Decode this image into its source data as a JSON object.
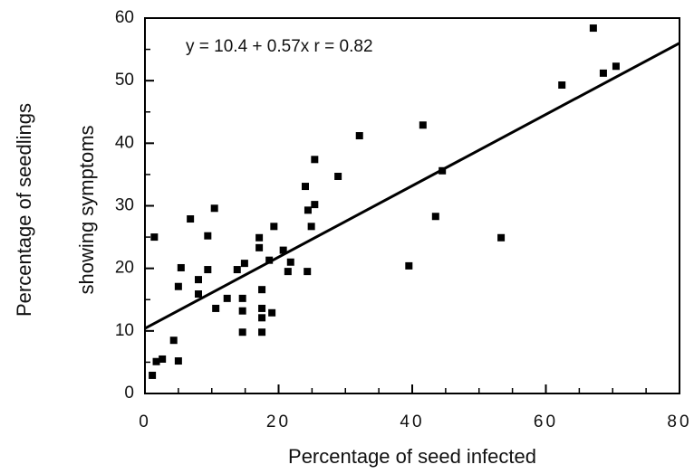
{
  "chart_data": {
    "type": "scatter",
    "annotation": "y = 10.4 + 0.57x  r = 0.82",
    "xlabel": "Percentage of seed infected",
    "ylabel": [
      "Percentage of seedlings",
      "showing symptoms"
    ],
    "xlim": [
      0,
      80
    ],
    "ylim": [
      0,
      60
    ],
    "xticks": [
      0,
      20,
      40,
      60,
      80
    ],
    "yticks": [
      0,
      10,
      20,
      30,
      40,
      50,
      60
    ],
    "xminorticks": [
      5,
      10,
      15,
      25,
      30,
      35,
      45,
      50,
      55,
      65,
      70,
      75
    ],
    "yminorticks": [
      5,
      15,
      25,
      35,
      45,
      55
    ],
    "color": "#000000",
    "trendline": {
      "intercept": 10.4,
      "slope": 0.57
    },
    "x": [
      1.1,
      1.4,
      1.7,
      2.6,
      4.3,
      5.0,
      5.0,
      5.4,
      6.8,
      8.0,
      8.0,
      9.4,
      9.4,
      10.4,
      10.6,
      12.3,
      13.8,
      14.6,
      14.6,
      14.6,
      14.9,
      17.1,
      17.1,
      17.5,
      17.5,
      17.5,
      17.5,
      18.6,
      19.0,
      19.3,
      20.7,
      21.4,
      21.8,
      24.0,
      24.4,
      25.4,
      25.4,
      24.9,
      24.3,
      28.9,
      32.1,
      39.5,
      44.5,
      41.6,
      43.5,
      53.3,
      62.4,
      67.1,
      68.6,
      70.5
    ],
    "y": [
      2.9,
      25.0,
      5.1,
      5.5,
      8.5,
      5.2,
      17.1,
      20.1,
      27.9,
      18.2,
      15.9,
      19.8,
      25.2,
      29.6,
      13.6,
      15.2,
      19.8,
      15.2,
      13.2,
      9.8,
      20.8,
      24.9,
      23.3,
      16.6,
      13.6,
      12.1,
      9.8,
      21.3,
      12.9,
      26.7,
      22.9,
      19.5,
      21.0,
      33.1,
      29.3,
      30.2,
      37.4,
      26.7,
      19.5,
      34.7,
      41.2,
      20.4,
      35.6,
      42.9,
      28.3,
      24.9,
      49.3,
      58.4,
      51.2,
      52.3
    ]
  }
}
